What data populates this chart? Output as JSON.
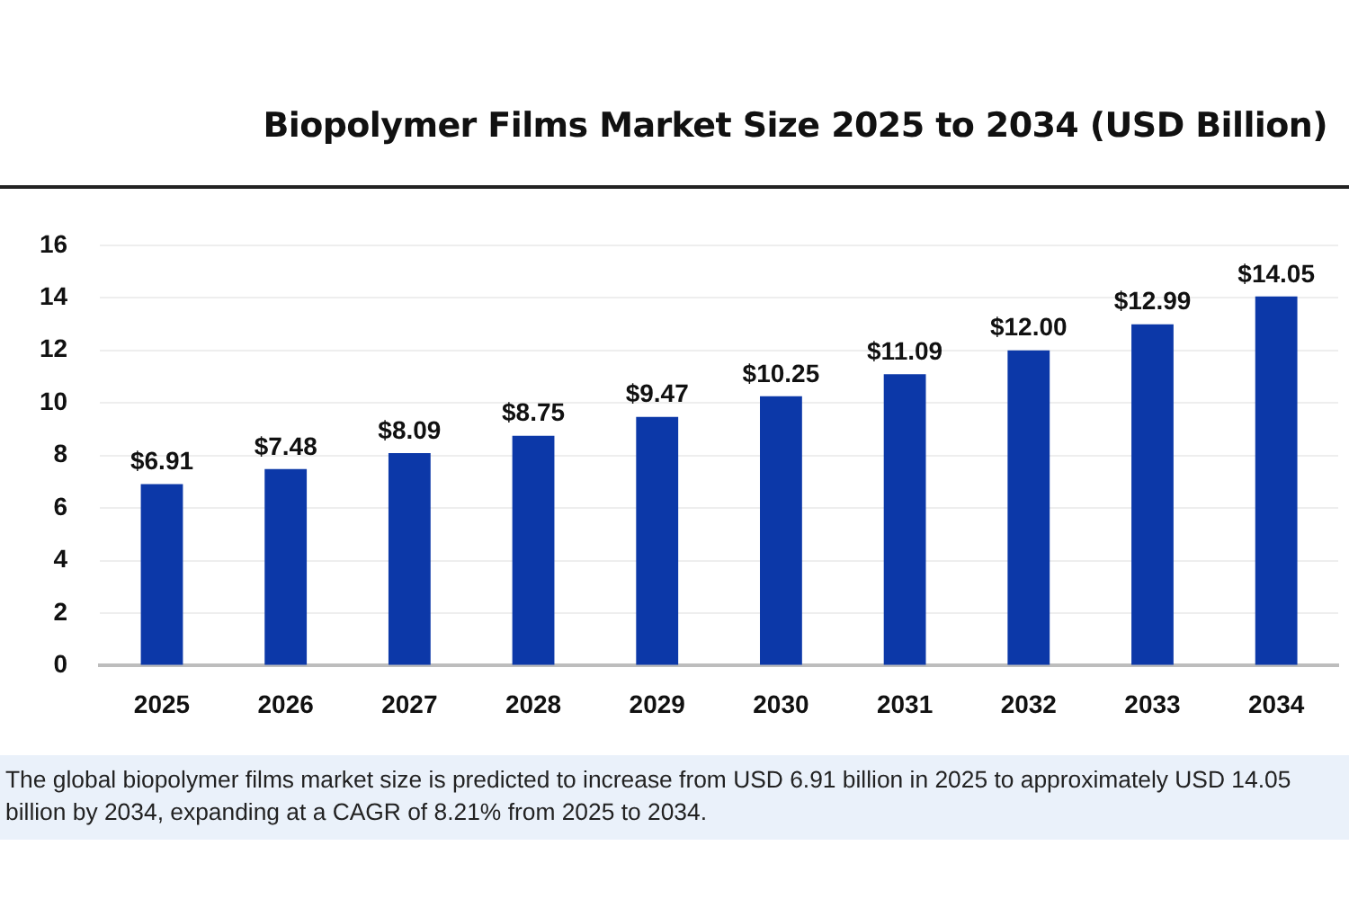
{
  "chart_data": {
    "type": "bar",
    "title": "Biopolymer Films Market Size 2025 to 2034 (USD Billion)",
    "categories": [
      "2025",
      "2026",
      "2027",
      "2028",
      "2029",
      "2030",
      "2031",
      "2032",
      "2033",
      "2034"
    ],
    "values": [
      6.91,
      7.48,
      8.09,
      8.75,
      9.47,
      10.25,
      11.09,
      12.0,
      12.99,
      14.05
    ],
    "value_labels": [
      "$6.91",
      "$7.48",
      "$8.09",
      "$8.75",
      "$9.47",
      "$10.25",
      "$11.09",
      "$12.00",
      "$12.99",
      "$14.05"
    ],
    "color": "#0c38a8",
    "ylim": [
      0,
      16
    ],
    "yticks": [
      0,
      2,
      4,
      6,
      8,
      10,
      12,
      14,
      16
    ],
    "grid": "y",
    "annotations": [
      "The global biopolymer films market size is predicted to increase from USD 6.91 billion in 2025 to approximately USD 14.05 billion by 2034, expanding at a CAGR of 8.21% from 2025 to 2034."
    ]
  }
}
